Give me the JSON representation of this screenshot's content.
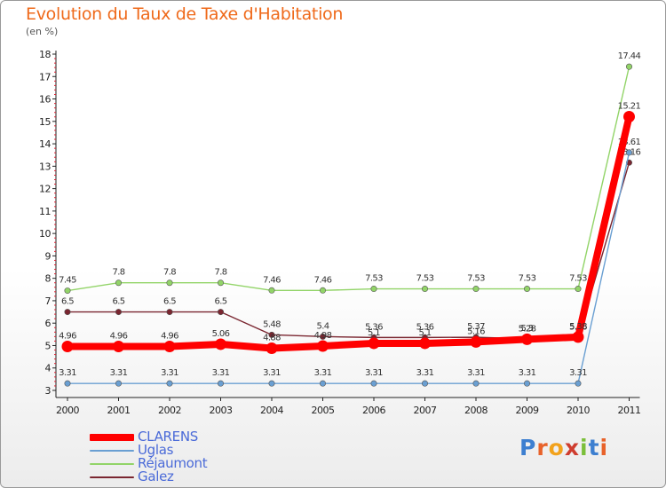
{
  "title": "Evolution du Taux de Taxe d'Habitation",
  "subtitle": "(en %)",
  "logo": "Proxiti",
  "chart_data": {
    "type": "line",
    "title": "Evolution du Taux de Taxe d'Habitation",
    "ylabel": "(en %)",
    "xlabel": "",
    "categories": [
      "2000",
      "2001",
      "2002",
      "2003",
      "2004",
      "2005",
      "2006",
      "2007",
      "2008",
      "2009",
      "2010",
      "2011"
    ],
    "ylim": [
      3,
      18
    ],
    "yticks": [
      "3",
      "4",
      "5",
      "6",
      "7",
      "8",
      "9",
      "10",
      "11",
      "12",
      "13",
      "14",
      "15",
      "16",
      "17",
      "18"
    ],
    "grid": false,
    "legend": "bottom-left",
    "series": [
      {
        "name": "Réjaumont",
        "color": "#92d468",
        "values": [
          7.45,
          7.8,
          7.8,
          7.8,
          7.46,
          7.46,
          7.53,
          7.53,
          7.53,
          7.53,
          7.53,
          17.44
        ],
        "labels": [
          "7.45",
          "7.8",
          "7.8",
          "7.8",
          "7.46",
          "7.46",
          "7.53",
          "7.53",
          "7.53",
          "7.53",
          "7.53",
          "17.44"
        ]
      },
      {
        "name": "Galez",
        "color": "#7a2630",
        "values": [
          6.5,
          6.5,
          6.5,
          6.5,
          5.48,
          5.4,
          5.36,
          5.36,
          5.37,
          5.3,
          5.36,
          13.16
        ],
        "labels": [
          "6.5",
          "6.5",
          "6.5",
          "6.5",
          "5.48",
          "5.4",
          "5.36",
          "5.36",
          "5.37",
          "5.3",
          "5.36",
          "13.16"
        ]
      },
      {
        "name": "Uglas",
        "color": "#6a9fd2",
        "values": [
          3.31,
          3.31,
          3.31,
          3.31,
          3.31,
          3.31,
          3.31,
          3.31,
          3.31,
          3.31,
          3.31,
          13.61
        ],
        "labels": [
          "3.31",
          "3.31",
          "3.31",
          "3.31",
          "3.31",
          "3.31",
          "3.31",
          "3.31",
          "3.31",
          "3.31",
          "3.31",
          "13.61"
        ]
      },
      {
        "name": "CLARENS",
        "color": "#ff0000",
        "values": [
          4.96,
          4.96,
          4.96,
          5.06,
          4.88,
          4.98,
          5.1,
          5.1,
          5.16,
          5.28,
          5.38,
          15.21
        ],
        "labels": [
          "4.96",
          "4.96",
          "4.96",
          "5.06",
          "4.88",
          "4.98",
          "5.1",
          "5.1",
          "5.16",
          "5.28",
          "5.38",
          "15.21"
        ]
      }
    ],
    "legend_entries": [
      {
        "name": "CLARENS",
        "color": "#ff0000"
      },
      {
        "name": "Uglas",
        "color": "#6a9fd2"
      },
      {
        "name": "Réjaumont",
        "color": "#92d468"
      },
      {
        "name": "Galez",
        "color": "#7a2630"
      }
    ]
  }
}
